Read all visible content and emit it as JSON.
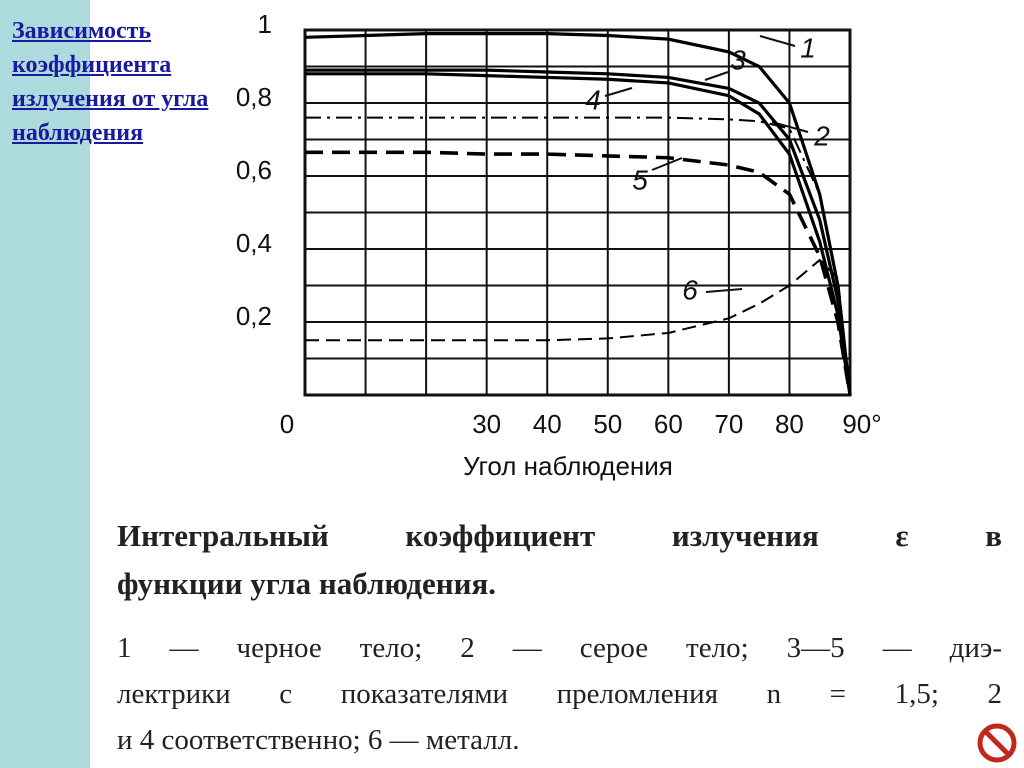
{
  "heading": "Зависимость коэффициента излучения от угла наблюдения",
  "chart_data": {
    "type": "line",
    "xlabel": "Угол наблюдения",
    "x": [
      0,
      10,
      20,
      30,
      40,
      50,
      60,
      70,
      75,
      80,
      85,
      88,
      90
    ],
    "series": [
      {
        "name": "1",
        "color": "#000000",
        "style": "solid",
        "values": [
          0.98,
          0.985,
          0.99,
          0.99,
          0.99,
          0.985,
          0.975,
          0.94,
          0.9,
          0.8,
          0.55,
          0.3,
          0
        ]
      },
      {
        "name": "2",
        "color": "#000000",
        "style": "dashdot",
        "values": [
          0.76,
          0.76,
          0.76,
          0.76,
          0.76,
          0.76,
          0.76,
          0.755,
          0.75,
          0.73,
          0.55,
          0.3,
          0
        ]
      },
      {
        "name": "3",
        "color": "#000000",
        "style": "solid",
        "values": [
          0.89,
          0.89,
          0.89,
          0.89,
          0.885,
          0.88,
          0.87,
          0.84,
          0.8,
          0.7,
          0.48,
          0.26,
          0
        ]
      },
      {
        "name": "4",
        "color": "#000000",
        "style": "solid",
        "values": [
          0.88,
          0.88,
          0.88,
          0.875,
          0.87,
          0.865,
          0.855,
          0.82,
          0.77,
          0.66,
          0.42,
          0.22,
          0
        ]
      },
      {
        "name": "5",
        "color": "#000000",
        "style": "dashed",
        "values": [
          0.665,
          0.665,
          0.665,
          0.66,
          0.66,
          0.655,
          0.65,
          0.63,
          0.61,
          0.55,
          0.38,
          0.2,
          0
        ]
      },
      {
        "name": "6",
        "color": "#000000",
        "style": "thindash",
        "values": [
          0.15,
          0.15,
          0.15,
          0.15,
          0.15,
          0.155,
          0.17,
          0.21,
          0.25,
          0.3,
          0.37,
          0.32,
          0
        ]
      }
    ],
    "xlim": [
      0,
      90
    ],
    "ylim": [
      0,
      1
    ],
    "xticks": [
      0,
      30,
      40,
      50,
      60,
      70,
      80,
      {
        "value": 90,
        "label": "90°"
      }
    ],
    "yticks": [
      {
        "value": 0.2,
        "label": "0,2"
      },
      {
        "value": 0.4,
        "label": "0,4"
      },
      {
        "value": 0.6,
        "label": "0,6"
      },
      {
        "value": 0.8,
        "label": "0,8"
      },
      1
    ],
    "xgrid": [
      0,
      10,
      20,
      30,
      40,
      50,
      60,
      70,
      80,
      90
    ],
    "ygrid": [
      0,
      0.1,
      0.2,
      0.3,
      0.4,
      0.5,
      0.6,
      0.7,
      0.8,
      0.9,
      1
    ]
  },
  "caption": [
    "Интегральный коэффициент излучения ε в",
    "функции угла наблюдения."
  ],
  "notes": [
    "1 — черное тело; 2 — серое тело; 3—5 — диэ-",
    "лектрики с показателями преломления n = 1,5; 2",
    "и 4 соответственно; 6 — металл."
  ]
}
